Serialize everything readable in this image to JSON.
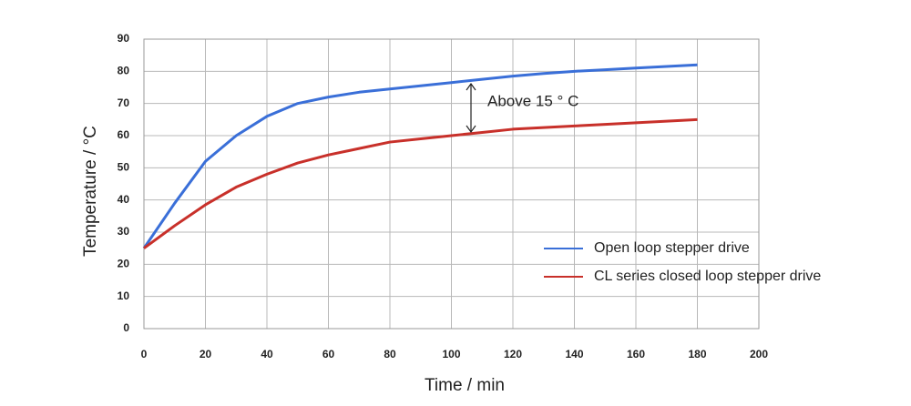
{
  "chart_data": {
    "type": "line",
    "x_label": "Time / min",
    "y_label": "Temperature / °C",
    "annotation": "Above 15 ° C",
    "x": [
      0,
      10,
      20,
      30,
      40,
      50,
      60,
      70,
      80,
      90,
      100,
      110,
      120,
      130,
      140,
      150,
      160,
      170,
      180
    ],
    "series": [
      {
        "name": "Open loop stepper drive",
        "color": "#3a6fd8",
        "values": [
          25,
          39,
          52,
          60,
          66,
          70,
          72,
          73.5,
          74.5,
          75.5,
          76.5,
          77.5,
          78.5,
          79.3,
          80,
          80.5,
          81,
          81.5,
          82
        ]
      },
      {
        "name": "CL series closed loop stepper drive",
        "color": "#c8302a",
        "values": [
          25,
          32,
          38.5,
          44,
          48,
          51.5,
          54,
          56,
          58,
          59,
          60,
          61,
          62,
          62.5,
          63,
          63.5,
          64,
          64.5,
          65
        ]
      }
    ],
    "xlim": [
      0,
      200
    ],
    "xticks": [
      0,
      20,
      40,
      60,
      80,
      100,
      120,
      140,
      160,
      180,
      200
    ],
    "ylim": [
      0,
      90
    ],
    "yticks": [
      0,
      10,
      20,
      30,
      40,
      50,
      60,
      70,
      80,
      90
    ],
    "grid": true
  }
}
